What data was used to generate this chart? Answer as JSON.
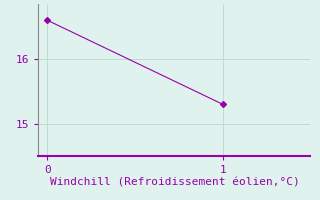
{
  "x": [
    0,
    1
  ],
  "y": [
    16.6,
    15.3
  ],
  "line_color": "#9900aa",
  "marker": "D",
  "marker_size": 3,
  "background_color": "#dff2ee",
  "grid_color": "#b8d8d0",
  "axis_color": "#888888",
  "bottom_axis_color": "#9900aa",
  "xlabel": "Windchill (Refroidissement éolien,°C)",
  "xlabel_color": "#9900aa",
  "xlabel_fontsize": 8,
  "tick_color": "#9900aa",
  "tick_fontsize": 8,
  "xlim": [
    -0.05,
    1.5
  ],
  "ylim": [
    14.5,
    16.85
  ],
  "yticks": [
    15,
    16
  ],
  "xticks": [
    0,
    1
  ]
}
